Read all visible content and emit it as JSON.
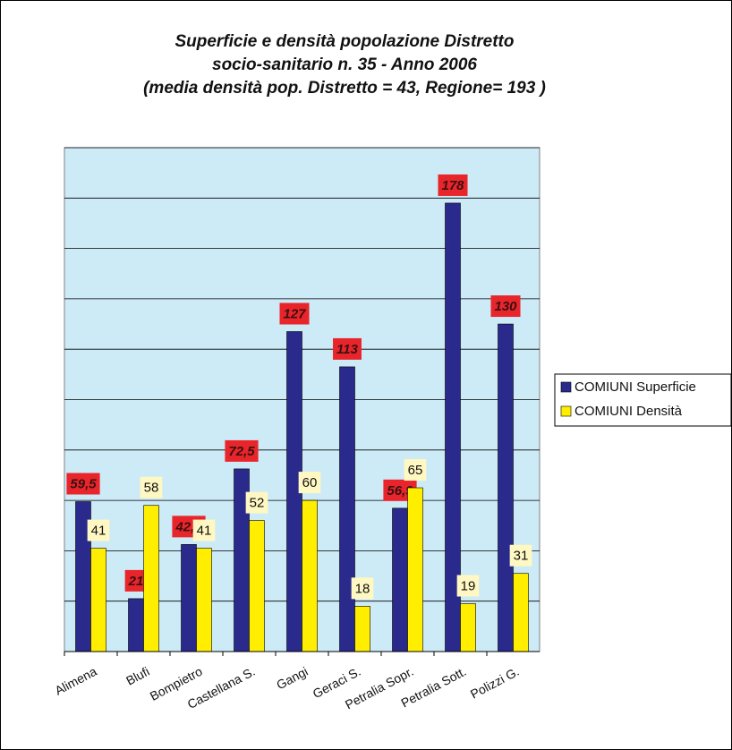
{
  "chart_data": {
    "type": "bar",
    "title": [
      "Superficie e densità popolazione Distretto",
      "socio-sanitario n. 35 - Anno 2006",
      "(media densità pop. Distretto = 43, Regione= 193 )"
    ],
    "categories": [
      "Alimena",
      "Blufi",
      "Bompietro",
      "Castellana S.",
      "Gangi",
      "Geraci S.",
      "Petralia Sopr.",
      "Petralia Sott.",
      "Polizzi G."
    ],
    "series": [
      {
        "name": "COMIUNI Superficie",
        "color": "#2a2a8c",
        "label_color": "#e8252b",
        "values": [
          59.5,
          21,
          42.5,
          72.5,
          127,
          113,
          56.9,
          178,
          130
        ],
        "value_labels": [
          "59,5",
          "21",
          "42,5",
          "72,5",
          "127",
          "113",
          "56,9",
          "178",
          "130"
        ]
      },
      {
        "name": "COMIUNI Densità",
        "color": "#ffee00",
        "label_color": "#fff8c2",
        "values": [
          41,
          58,
          41,
          52,
          60,
          18,
          65,
          19,
          31
        ]
      }
    ],
    "ylim": [
      0,
      200
    ],
    "yticks": [
      0,
      20,
      40,
      60,
      80,
      100,
      120,
      140,
      160,
      180,
      200
    ],
    "grid": true
  }
}
